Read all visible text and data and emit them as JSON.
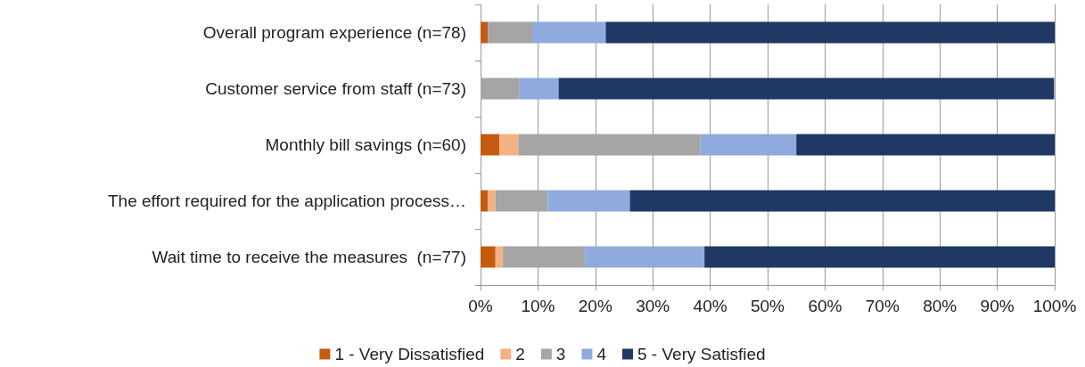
{
  "chart_data": {
    "type": "bar",
    "orientation": "horizontal",
    "stacked": true,
    "categories": [
      "Overall program experience (n=78)",
      "Customer service from staff (n=73)",
      "Monthly bill savings (n=60)",
      "The effort required for the application process…",
      "Wait time to receive the measures  (n=77)"
    ],
    "series": [
      {
        "name": "1 - Very Dissatisfied",
        "color": "#c55a11",
        "values": [
          1.3,
          0,
          3.3,
          1.3,
          2.6
        ]
      },
      {
        "name": "2",
        "color": "#f4b183",
        "values": [
          0,
          0,
          3.3,
          1.3,
          1.3
        ]
      },
      {
        "name": "3",
        "color": "#a5a5a5",
        "values": [
          7.7,
          6.8,
          31.7,
          9.1,
          14.3
        ]
      },
      {
        "name": "4",
        "color": "#8faadc",
        "values": [
          12.8,
          6.8,
          16.7,
          14.3,
          20.8
        ]
      },
      {
        "name": "5 - Very Satisfied",
        "color": "#203864",
        "values": [
          78.2,
          86.3,
          45.0,
          74.0,
          61.0
        ]
      }
    ],
    "xlim": [
      0,
      100
    ],
    "xticks": [
      {
        "value": 0,
        "label": "0%"
      },
      {
        "value": 10,
        "label": "10%"
      },
      {
        "value": 20,
        "label": "20%"
      },
      {
        "value": 30,
        "label": "30%"
      },
      {
        "value": 40,
        "label": "40%"
      },
      {
        "value": 50,
        "label": "50%"
      },
      {
        "value": 60,
        "label": "60%"
      },
      {
        "value": 70,
        "label": "70%"
      },
      {
        "value": 80,
        "label": "80%"
      },
      {
        "value": 90,
        "label": "90%"
      },
      {
        "value": 100,
        "label": "100%"
      }
    ],
    "grid": "x",
    "legend": "bottom"
  }
}
